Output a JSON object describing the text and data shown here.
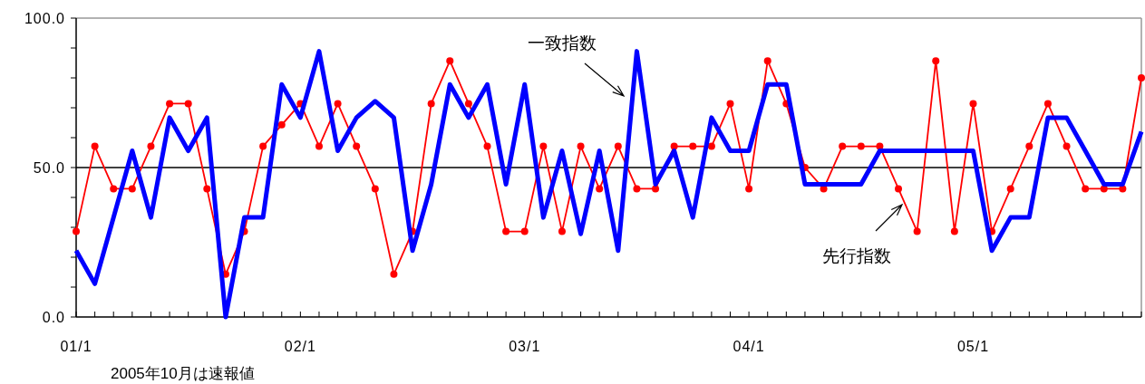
{
  "chart_data": {
    "type": "line",
    "x": [
      "2001-01",
      "2001-02",
      "2001-03",
      "2001-04",
      "2001-05",
      "2001-06",
      "2001-07",
      "2001-08",
      "2001-09",
      "2001-10",
      "2001-11",
      "2001-12",
      "2002-01",
      "2002-02",
      "2002-03",
      "2002-04",
      "2002-05",
      "2002-06",
      "2002-07",
      "2002-08",
      "2002-09",
      "2002-10",
      "2002-11",
      "2002-12",
      "2003-01",
      "2003-02",
      "2003-03",
      "2003-04",
      "2003-05",
      "2003-06",
      "2003-07",
      "2003-08",
      "2003-09",
      "2003-10",
      "2003-11",
      "2003-12",
      "2004-01",
      "2004-02",
      "2004-03",
      "2004-04",
      "2004-05",
      "2004-06",
      "2004-07",
      "2004-08",
      "2004-09",
      "2004-10",
      "2004-11",
      "2004-12",
      "2005-01",
      "2005-02",
      "2005-03",
      "2005-04",
      "2005-05",
      "2005-06",
      "2005-07",
      "2005-08",
      "2005-09",
      "2005-10"
    ],
    "series": [
      {
        "name": "先行指数",
        "color": "#ff0000",
        "marker": "circle",
        "values": [
          28.6,
          57.1,
          42.9,
          42.9,
          57.1,
          71.4,
          71.4,
          42.9,
          14.3,
          28.6,
          57.1,
          64.3,
          71.4,
          57.1,
          71.4,
          57.1,
          42.9,
          14.3,
          28.6,
          71.4,
          85.7,
          71.4,
          57.1,
          28.6,
          28.6,
          57.1,
          28.6,
          57.1,
          42.9,
          57.1,
          42.9,
          42.9,
          57.1,
          57.1,
          57.1,
          71.4,
          42.9,
          85.7,
          71.4,
          50.0,
          42.9,
          57.1,
          57.1,
          57.1,
          42.9,
          28.6,
          85.7,
          28.6,
          71.4,
          28.6,
          42.9,
          57.1,
          71.4,
          57.1,
          42.9,
          42.9,
          42.9,
          80.0
        ]
      },
      {
        "name": "一致指数",
        "color": "#0000ff",
        "marker": "none",
        "values": [
          22.2,
          11.1,
          33.3,
          55.6,
          33.3,
          66.7,
          55.6,
          66.7,
          0.0,
          33.3,
          33.3,
          77.8,
          66.7,
          88.9,
          55.6,
          66.7,
          72.2,
          66.7,
          22.2,
          44.4,
          77.8,
          66.7,
          77.8,
          44.4,
          77.8,
          33.3,
          55.6,
          27.8,
          55.6,
          22.2,
          88.9,
          44.4,
          55.6,
          33.3,
          66.7,
          55.6,
          55.6,
          77.8,
          77.8,
          44.4,
          44.4,
          44.4,
          44.4,
          55.6,
          55.6,
          55.6,
          55.6,
          55.6,
          55.6,
          22.2,
          33.3,
          33.3,
          66.7,
          66.7,
          55.6,
          44.4,
          44.4,
          62.0
        ]
      }
    ],
    "xlim": [
      "2001-01",
      "2005-10"
    ],
    "xticks": [
      {
        "value": "2001-01",
        "label": "01/1"
      },
      {
        "value": "2001-02",
        "label": null
      },
      {
        "value": "2001-03",
        "label": null
      },
      {
        "value": "2001-04",
        "label": null
      },
      {
        "value": "2001-05",
        "label": null
      },
      {
        "value": "2001-06",
        "label": null
      },
      {
        "value": "2001-07",
        "label": null
      },
      {
        "value": "2001-08",
        "label": null
      },
      {
        "value": "2001-09",
        "label": null
      },
      {
        "value": "2001-10",
        "label": null
      },
      {
        "value": "2001-11",
        "label": null
      },
      {
        "value": "2001-12",
        "label": null
      },
      {
        "value": "2002-01",
        "label": "02/1"
      },
      {
        "value": "2002-02",
        "label": null
      },
      {
        "value": "2002-03",
        "label": null
      },
      {
        "value": "2002-04",
        "label": null
      },
      {
        "value": "2002-05",
        "label": null
      },
      {
        "value": "2002-06",
        "label": null
      },
      {
        "value": "2002-07",
        "label": null
      },
      {
        "value": "2002-08",
        "label": null
      },
      {
        "value": "2002-09",
        "label": null
      },
      {
        "value": "2002-10",
        "label": null
      },
      {
        "value": "2002-11",
        "label": null
      },
      {
        "value": "2002-12",
        "label": null
      },
      {
        "value": "2003-01",
        "label": "03/1"
      },
      {
        "value": "2003-02",
        "label": null
      },
      {
        "value": "2003-03",
        "label": null
      },
      {
        "value": "2003-04",
        "label": null
      },
      {
        "value": "2003-05",
        "label": null
      },
      {
        "value": "2003-06",
        "label": null
      },
      {
        "value": "2003-07",
        "label": null
      },
      {
        "value": "2003-08",
        "label": null
      },
      {
        "value": "2003-09",
        "label": null
      },
      {
        "value": "2003-10",
        "label": null
      },
      {
        "value": "2003-11",
        "label": null
      },
      {
        "value": "2003-12",
        "label": null
      },
      {
        "value": "2004-01",
        "label": "04/1"
      },
      {
        "value": "2004-02",
        "label": null
      },
      {
        "value": "2004-03",
        "label": null
      },
      {
        "value": "2004-04",
        "label": null
      },
      {
        "value": "2004-05",
        "label": null
      },
      {
        "value": "2004-06",
        "label": null
      },
      {
        "value": "2004-07",
        "label": null
      },
      {
        "value": "2004-08",
        "label": null
      },
      {
        "value": "2004-09",
        "label": null
      },
      {
        "value": "2004-10",
        "label": null
      },
      {
        "value": "2004-11",
        "label": null
      },
      {
        "value": "2004-12",
        "label": null
      },
      {
        "value": "2005-01",
        "label": "05/1"
      },
      {
        "value": "2005-02",
        "label": null
      },
      {
        "value": "2005-03",
        "label": null
      },
      {
        "value": "2005-04",
        "label": null
      },
      {
        "value": "2005-05",
        "label": null
      },
      {
        "value": "2005-06",
        "label": null
      },
      {
        "value": "2005-07",
        "label": null
      },
      {
        "value": "2005-08",
        "label": null
      },
      {
        "value": "2005-09",
        "label": null
      },
      {
        "value": "2005-10",
        "label": null
      }
    ],
    "ylim": [
      0,
      100
    ],
    "yticks": [
      {
        "value": 0,
        "label": "0.0"
      },
      {
        "value": 10,
        "label": null
      },
      {
        "value": 20,
        "label": null
      },
      {
        "value": 30,
        "label": null
      },
      {
        "value": 40,
        "label": null
      },
      {
        "value": 50,
        "label": "50.0"
      },
      {
        "value": 60,
        "label": null
      },
      {
        "value": 70,
        "label": null
      },
      {
        "value": 80,
        "label": null
      },
      {
        "value": 90,
        "label": null
      },
      {
        "value": 100,
        "label": "100.0"
      }
    ],
    "ref_lines": [
      {
        "axis": "y",
        "value": 50,
        "color": "#000000",
        "line_style": "solid"
      }
    ],
    "annotations": [
      "2005年10月は速報値"
    ]
  }
}
